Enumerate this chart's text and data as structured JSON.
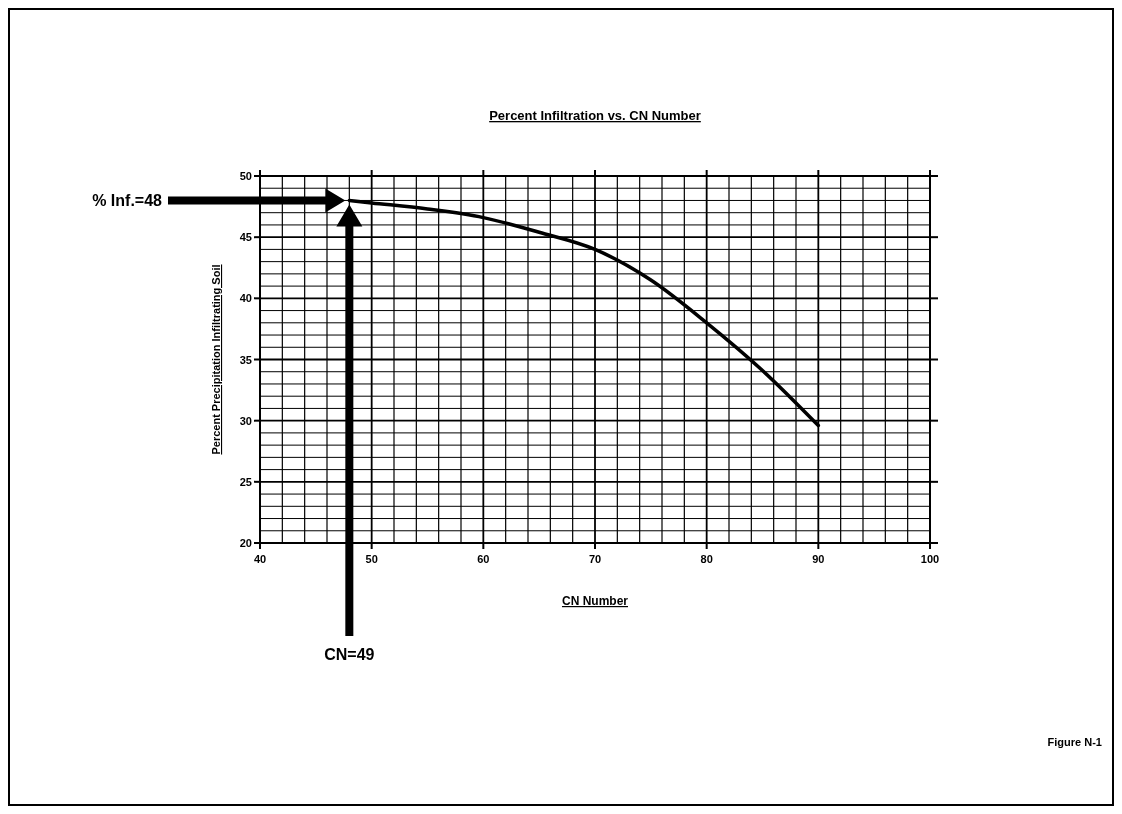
{
  "chart_data": {
    "type": "line",
    "title": "Percent Infiltration vs. CN Number",
    "xlabel": "CN Number",
    "ylabel": "Percent Precipitation Infiltrating Soil",
    "x": [
      48,
      50,
      55,
      60,
      65,
      70,
      75,
      80,
      85,
      90
    ],
    "series": [
      {
        "color": "#000000",
        "values": [
          48,
          47.8,
          47.3,
          46.6,
          45.4,
          44,
          41.5,
          38,
          34.1,
          29.6
        ]
      }
    ],
    "xlim": [
      40,
      100
    ],
    "xticks": [
      40,
      {
        "value": 42,
        "label": null
      },
      {
        "value": 44,
        "label": null
      },
      {
        "value": 46,
        "label": null
      },
      {
        "value": 48,
        "label": null
      },
      50,
      {
        "value": 52,
        "label": null
      },
      {
        "value": 54,
        "label": null
      },
      {
        "value": 56,
        "label": null
      },
      {
        "value": 58,
        "label": null
      },
      60,
      {
        "value": 62,
        "label": null
      },
      {
        "value": 64,
        "label": null
      },
      {
        "value": 66,
        "label": null
      },
      {
        "value": 68,
        "label": null
      },
      70,
      {
        "value": 72,
        "label": null
      },
      {
        "value": 74,
        "label": null
      },
      {
        "value": 76,
        "label": null
      },
      {
        "value": 78,
        "label": null
      },
      80,
      {
        "value": 82,
        "label": null
      },
      {
        "value": 84,
        "label": null
      },
      {
        "value": 86,
        "label": null
      },
      {
        "value": 88,
        "label": null
      },
      90,
      {
        "value": 92,
        "label": null
      },
      {
        "value": 94,
        "label": null
      },
      {
        "value": 96,
        "label": null
      },
      {
        "value": 98,
        "label": null
      },
      100
    ],
    "ylim": [
      20,
      50
    ],
    "yticks": [
      20,
      {
        "value": 21,
        "label": null
      },
      {
        "value": 22,
        "label": null
      },
      {
        "value": 23,
        "label": null
      },
      {
        "value": 24,
        "label": null
      },
      25,
      {
        "value": 26,
        "label": null
      },
      {
        "value": 27,
        "label": null
      },
      {
        "value": 28,
        "label": null
      },
      {
        "value": 29,
        "label": null
      },
      30,
      {
        "value": 31,
        "label": null
      },
      {
        "value": 32,
        "label": null
      },
      {
        "value": 33,
        "label": null
      },
      {
        "value": 34,
        "label": null
      },
      35,
      {
        "value": 36,
        "label": null
      },
      {
        "value": 37,
        "label": null
      },
      {
        "value": 38,
        "label": null
      },
      {
        "value": 39,
        "label": null
      },
      40,
      {
        "value": 41,
        "label": null
      },
      {
        "value": 42,
        "label": null
      },
      {
        "value": 43,
        "label": null
      },
      {
        "value": 44,
        "label": null
      },
      45,
      {
        "value": 46,
        "label": null
      },
      {
        "value": 47,
        "label": null
      },
      {
        "value": 48,
        "label": null
      },
      {
        "value": 49,
        "label": null
      },
      50
    ],
    "grid": true,
    "marker": "none",
    "line_style": "solid",
    "annotations": [
      "% Inf.=48",
      "CN=49",
      "Figure N-1"
    ]
  }
}
